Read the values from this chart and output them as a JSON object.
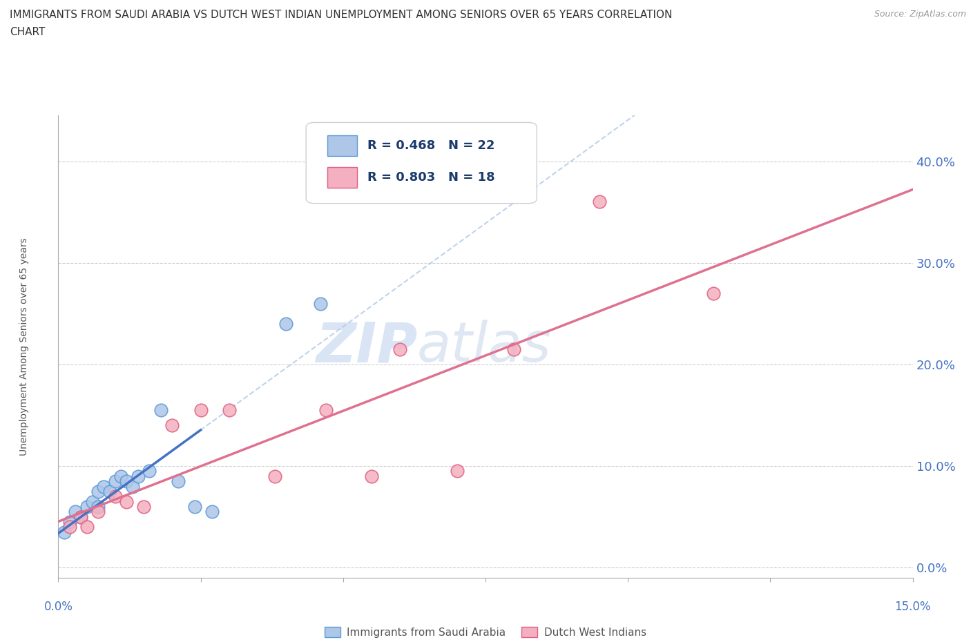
{
  "title_line1": "IMMIGRANTS FROM SAUDI ARABIA VS DUTCH WEST INDIAN UNEMPLOYMENT AMONG SENIORS OVER 65 YEARS CORRELATION",
  "title_line2": "CHART",
  "source": "Source: ZipAtlas.com",
  "ylabel": "Unemployment Among Seniors over 65 years",
  "xlim": [
    0.0,
    0.15
  ],
  "ylim": [
    -0.01,
    0.445
  ],
  "x_ticks": [
    0.0,
    0.025,
    0.05,
    0.075,
    0.1,
    0.125,
    0.15
  ],
  "y_ticks": [
    0.0,
    0.1,
    0.2,
    0.3,
    0.4
  ],
  "y_tick_labels": [
    "0.0%",
    "10.0%",
    "20.0%",
    "30.0%",
    "40.0%"
  ],
  "saudi_R": 0.468,
  "saudi_N": 22,
  "dwi_R": 0.803,
  "dwi_N": 18,
  "saudi_fill": "#aec6e8",
  "saudi_edge": "#5b9bd5",
  "dwi_fill": "#f4afc0",
  "dwi_edge": "#e06080",
  "trend_blue": "#4472c4",
  "trend_pink": "#e07090",
  "trend_dashed": "#b0c8e8",
  "legend_label_saudi": "Immigrants from Saudi Arabia",
  "legend_label_dwi": "Dutch West Indians",
  "watermark_zip": "ZIP",
  "watermark_atlas": "atlas",
  "background_color": "#ffffff",
  "saudi_x": [
    0.001,
    0.002,
    0.003,
    0.004,
    0.005,
    0.006,
    0.007,
    0.007,
    0.008,
    0.009,
    0.01,
    0.011,
    0.012,
    0.013,
    0.014,
    0.016,
    0.018,
    0.021,
    0.024,
    0.027,
    0.04,
    0.046
  ],
  "saudi_y": [
    0.035,
    0.045,
    0.055,
    0.05,
    0.06,
    0.065,
    0.06,
    0.075,
    0.08,
    0.075,
    0.085,
    0.09,
    0.085,
    0.08,
    0.09,
    0.095,
    0.155,
    0.085,
    0.06,
    0.055,
    0.24,
    0.26
  ],
  "dwi_x": [
    0.002,
    0.004,
    0.005,
    0.007,
    0.01,
    0.012,
    0.015,
    0.02,
    0.025,
    0.03,
    0.038,
    0.047,
    0.055,
    0.06,
    0.07,
    0.08,
    0.095,
    0.115
  ],
  "dwi_y": [
    0.04,
    0.05,
    0.04,
    0.055,
    0.07,
    0.065,
    0.06,
    0.14,
    0.155,
    0.155,
    0.09,
    0.155,
    0.09,
    0.215,
    0.095,
    0.215,
    0.36,
    0.27
  ]
}
